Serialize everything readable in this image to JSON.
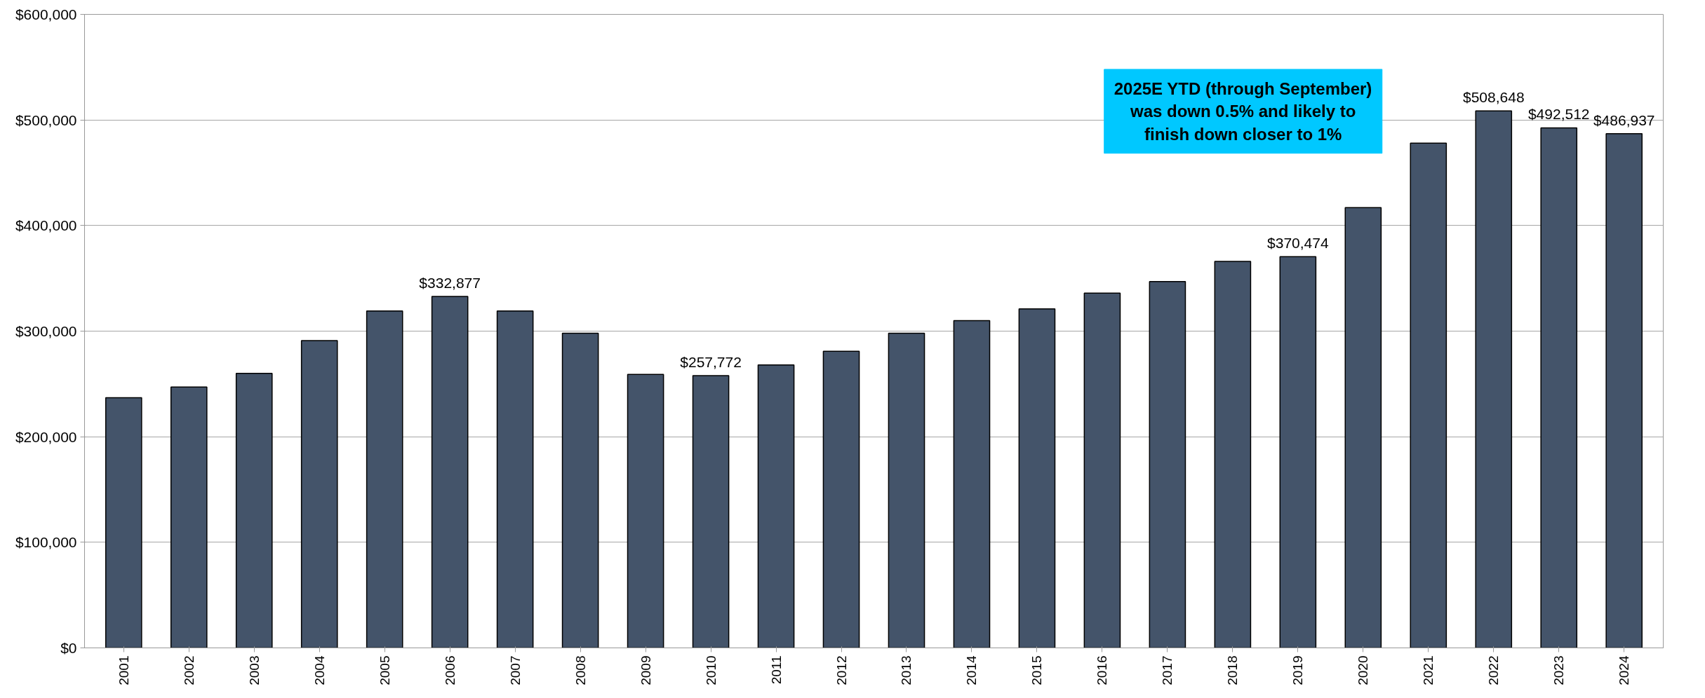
{
  "chart_data": {
    "type": "bar",
    "categories": [
      "2001",
      "2002",
      "2003",
      "2004",
      "2005",
      "2006",
      "2007",
      "2008",
      "2009",
      "2010",
      "2011",
      "2012",
      "2013",
      "2014",
      "2015",
      "2016",
      "2017",
      "2018",
      "2019",
      "2020",
      "2021",
      "2022",
      "2023",
      "2024"
    ],
    "values": [
      237000,
      247000,
      260000,
      291000,
      319000,
      332877,
      319000,
      298000,
      259000,
      257772,
      268000,
      281000,
      298000,
      310000,
      321000,
      336000,
      347000,
      366000,
      370474,
      417000,
      478000,
      508648,
      492512,
      486937
    ],
    "value_labels": [
      null,
      null,
      null,
      null,
      null,
      "$332,877",
      null,
      null,
      null,
      "$257,772",
      null,
      null,
      null,
      null,
      null,
      null,
      null,
      null,
      "$370,474",
      null,
      null,
      "$508,648",
      "$492,512",
      "$486,937"
    ],
    "color": "#44546a",
    "ylim": [
      0,
      600000
    ],
    "yticks": [
      {
        "value": 0,
        "label": "$0"
      },
      {
        "value": 100000,
        "label": "$100,000"
      },
      {
        "value": 200000,
        "label": "$200,000"
      },
      {
        "value": 300000,
        "label": "$300,000"
      },
      {
        "value": 400000,
        "label": "$400,000"
      },
      {
        "value": 500000,
        "label": "$500,000"
      },
      {
        "value": 600000,
        "label": "$600,000"
      }
    ],
    "grid": "y",
    "annotations": [
      "2025E YTD (through September) was down 0.5% and likely to finish down closer to 1%"
    ]
  }
}
